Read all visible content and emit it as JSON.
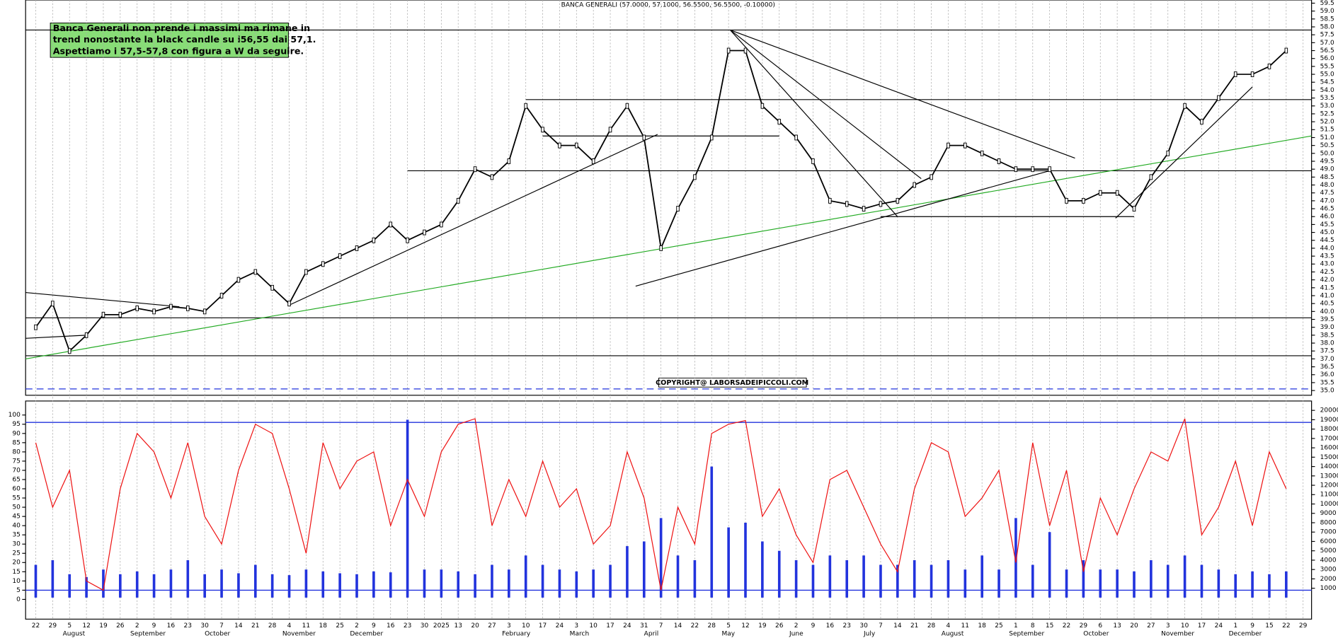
{
  "chart_data": {
    "type": "line",
    "title": "BANCA GENERALI (57.0000, 57.1000, 56.5500, 56.5500, -0.10000)",
    "annotation": [
      "Banca Generali non prende i massimi ma rimane in",
      "trend nonostante la black candle su i56,55 dai 57,1.",
      "Aspettiamo i 57,5-57,8 con figura a W da seguire."
    ],
    "copyright": "COPYRIGHT@ LABORSADEIPICCOLI.COM",
    "xlim": [
      -0.6,
      75.5
    ],
    "xticks": [
      {
        "value": 0,
        "label": "22"
      },
      {
        "value": 1,
        "label": "29"
      },
      {
        "value": 2,
        "label": "5"
      },
      {
        "value": 3,
        "label": "12"
      },
      {
        "value": 4,
        "label": "19"
      },
      {
        "value": 5,
        "label": "26"
      },
      {
        "value": 6,
        "label": "2"
      },
      {
        "value": 7,
        "label": "9"
      },
      {
        "value": 8,
        "label": "16"
      },
      {
        "value": 9,
        "label": "23"
      },
      {
        "value": 10,
        "label": "30"
      },
      {
        "value": 11,
        "label": "7"
      },
      {
        "value": 12,
        "label": "14"
      },
      {
        "value": 13,
        "label": "21"
      },
      {
        "value": 14,
        "label": "28"
      },
      {
        "value": 15,
        "label": "4"
      },
      {
        "value": 16,
        "label": "11"
      },
      {
        "value": 17,
        "label": "18"
      },
      {
        "value": 18,
        "label": "25"
      },
      {
        "value": 19,
        "label": "2"
      },
      {
        "value": 20,
        "label": "9"
      },
      {
        "value": 21,
        "label": "16"
      },
      {
        "value": 22,
        "label": "23"
      },
      {
        "value": 23,
        "label": "30"
      },
      {
        "value": 24,
        "label": "2025"
      },
      {
        "value": 25,
        "label": "13"
      },
      {
        "value": 26,
        "label": "20"
      },
      {
        "value": 27,
        "label": "27"
      },
      {
        "value": 28,
        "label": "3"
      },
      {
        "value": 29,
        "label": "10"
      },
      {
        "value": 30,
        "label": "17"
      },
      {
        "value": 31,
        "label": "24"
      },
      {
        "value": 32,
        "label": "3"
      },
      {
        "value": 33,
        "label": "10"
      },
      {
        "value": 34,
        "label": "17"
      },
      {
        "value": 35,
        "label": "24"
      },
      {
        "value": 36,
        "label": "31"
      },
      {
        "value": 37,
        "label": "7"
      },
      {
        "value": 38,
        "label": "14"
      },
      {
        "value": 39,
        "label": "22"
      },
      {
        "value": 40,
        "label": "28"
      },
      {
        "value": 41,
        "label": "5"
      },
      {
        "value": 42,
        "label": "12"
      },
      {
        "value": 43,
        "label": "19"
      },
      {
        "value": 44,
        "label": "26"
      },
      {
        "value": 45,
        "label": "2"
      },
      {
        "value": 46,
        "label": "9"
      },
      {
        "value": 47,
        "label": "16"
      },
      {
        "value": 48,
        "label": "23"
      },
      {
        "value": 49,
        "label": "30"
      },
      {
        "value": 50,
        "label": "7"
      },
      {
        "value": 51,
        "label": "14"
      },
      {
        "value": 52,
        "label": "21"
      },
      {
        "value": 53,
        "label": "28"
      },
      {
        "value": 54,
        "label": "4"
      },
      {
        "value": 55,
        "label": "11"
      },
      {
        "value": 56,
        "label": "18"
      },
      {
        "value": 57,
        "label": "25"
      },
      {
        "value": 58,
        "label": "1"
      },
      {
        "value": 59,
        "label": "8"
      },
      {
        "value": 60,
        "label": "15"
      },
      {
        "value": 61,
        "label": "22"
      },
      {
        "value": 62,
        "label": "29"
      },
      {
        "value": 63,
        "label": "6"
      },
      {
        "value": 64,
        "label": "13"
      },
      {
        "value": 65,
        "label": "20"
      },
      {
        "value": 66,
        "label": "27"
      },
      {
        "value": 67,
        "label": "3"
      },
      {
        "value": 68,
        "label": "10"
      },
      {
        "value": 69,
        "label": "17"
      },
      {
        "value": 70,
        "label": "24"
      },
      {
        "value": 71,
        "label": "1"
      },
      {
        "value": 72,
        "label": "9"
      },
      {
        "value": 73,
        "label": "15"
      },
      {
        "value": 74,
        "label": "22"
      },
      {
        "value": 75,
        "label": "29"
      }
    ],
    "months": [
      {
        "value": 2,
        "label": "August"
      },
      {
        "value": 6,
        "label": "September"
      },
      {
        "value": 10.4,
        "label": "October"
      },
      {
        "value": 15,
        "label": "November"
      },
      {
        "value": 19,
        "label": "December"
      },
      {
        "value": 28,
        "label": "February"
      },
      {
        "value": 32,
        "label": "March"
      },
      {
        "value": 36.4,
        "label": "April"
      },
      {
        "value": 41,
        "label": "May"
      },
      {
        "value": 45,
        "label": "June"
      },
      {
        "value": 49.4,
        "label": "July"
      },
      {
        "value": 54,
        "label": "August"
      },
      {
        "value": 58,
        "label": "September"
      },
      {
        "value": 62.4,
        "label": "October"
      },
      {
        "value": 67,
        "label": "November"
      },
      {
        "value": 71,
        "label": "December"
      }
    ],
    "x": [
      0,
      1,
      2,
      3,
      4,
      5,
      6,
      7,
      8,
      9,
      10,
      11,
      12,
      13,
      14,
      15,
      16,
      17,
      18,
      19,
      20,
      21,
      22,
      23,
      24,
      25,
      26,
      27,
      28,
      29,
      30,
      31,
      32,
      33,
      34,
      35,
      36,
      37,
      38,
      39,
      40,
      41,
      42,
      43,
      44,
      45,
      46,
      47,
      48,
      49,
      50,
      51,
      52,
      53,
      54,
      55,
      56,
      57,
      58,
      59,
      60,
      61,
      62,
      63,
      64,
      65,
      66,
      67,
      68,
      69,
      70,
      71,
      72,
      73,
      74
    ],
    "ylim": [
      34.7,
      59.7
    ],
    "yticks": [
      {
        "value": 35,
        "label": "35.0"
      },
      35.5,
      {
        "value": 36,
        "label": "36.0"
      },
      36.5,
      {
        "value": 37,
        "label": "37.0"
      },
      37.5,
      {
        "value": 38,
        "label": "38.0"
      },
      38.5,
      {
        "value": 39,
        "label": "39.0"
      },
      39.5,
      {
        "value": 40,
        "label": "40.0"
      },
      40.5,
      {
        "value": 41,
        "label": "41.0"
      },
      41.5,
      {
        "value": 42,
        "label": "42.0"
      },
      42.5,
      {
        "value": 43,
        "label": "43.0"
      },
      43.5,
      {
        "value": 44,
        "label": "44.0"
      },
      44.5,
      {
        "value": 45,
        "label": "45.0"
      },
      45.5,
      {
        "value": 46,
        "label": "46.0"
      },
      46.5,
      {
        "value": 47,
        "label": "47.0"
      },
      47.5,
      {
        "value": 48,
        "label": "48.0"
      },
      48.5,
      {
        "value": 49,
        "label": "49.0"
      },
      49.5,
      {
        "value": 50,
        "label": "50.0"
      },
      50.5,
      {
        "value": 51,
        "label": "51.0"
      },
      51.5,
      {
        "value": 52,
        "label": "52.0"
      },
      52.5,
      {
        "value": 53,
        "label": "53.0"
      },
      53.5,
      {
        "value": 54,
        "label": "54.0"
      },
      54.5,
      {
        "value": 55,
        "label": "55.0"
      },
      55.5,
      {
        "value": 56,
        "label": "56.0"
      },
      56.5,
      {
        "value": 57,
        "label": "57.0"
      },
      57.5,
      {
        "value": 58,
        "label": "58.0"
      },
      58.5,
      {
        "value": 59,
        "label": "59.0"
      },
      59.5
    ],
    "series": [
      {
        "color": "#000000",
        "values": [
          39.0,
          40.5,
          37.5,
          38.5,
          39.8,
          39.8,
          40.2,
          40.0,
          40.3,
          40.2,
          40.0,
          41.0,
          42.0,
          42.5,
          41.5,
          40.5,
          42.5,
          43.0,
          43.5,
          44.0,
          44.5,
          45.5,
          44.5,
          45.0,
          45.5,
          47.0,
          49.0,
          48.5,
          49.5,
          53.0,
          51.5,
          50.5,
          50.5,
          49.5,
          51.5,
          53.0,
          51.0,
          44.0,
          46.5,
          48.5,
          51.0,
          56.5,
          56.5,
          53.0,
          52.0,
          51.0,
          49.5,
          47.0,
          46.8,
          46.5,
          46.8,
          47.0,
          48.0,
          48.5,
          50.5,
          50.5,
          50.0,
          49.5,
          49.0,
          49.0,
          49.0,
          47.0,
          47.0,
          47.5,
          47.5,
          46.5,
          48.5,
          50.0,
          53.0,
          52.0,
          53.5,
          55.0,
          55.0,
          55.5,
          56.5
        ]
      }
    ],
    "levels": [
      {
        "value": 57.8,
        "from": -0.6,
        "to": 75.5,
        "color": "#000000"
      },
      {
        "value": 53.4,
        "from": 29,
        "to": 75.5,
        "color": "#000000"
      },
      {
        "value": 51.1,
        "from": 30,
        "to": 44,
        "color": "#000000"
      },
      {
        "value": 48.9,
        "from": 22,
        "to": 75.5,
        "color": "#000000"
      },
      {
        "value": 46.0,
        "from": 50,
        "to": 65,
        "color": "#000000"
      },
      {
        "value": 39.6,
        "from": -0.6,
        "to": 75.5,
        "color": "#000000"
      },
      {
        "value": 37.2,
        "from": -0.6,
        "to": 75.5,
        "color": "#000000"
      },
      {
        "value": 35.1,
        "from": -0.6,
        "to": 75.5,
        "color": "#2233dd",
        "dashed": true
      }
    ],
    "trendlines": [
      {
        "points": [
          [
            -0.6,
            37.0
          ],
          [
            75.5,
            51.1
          ]
        ],
        "color": "#22aa22"
      },
      {
        "points": [
          [
            15,
            40.4
          ],
          [
            36.8,
            51.2
          ]
        ],
        "color": "#000000"
      },
      {
        "points": [
          [
            35.5,
            41.6
          ],
          [
            60,
            48.9
          ]
        ],
        "color": "#000000"
      },
      {
        "points": [
          [
            41.1,
            57.8
          ],
          [
            61.5,
            49.7
          ]
        ],
        "color": "#000000"
      },
      {
        "points": [
          [
            41.1,
            57.8
          ],
          [
            51,
            46.0
          ]
        ],
        "color": "#000000"
      },
      {
        "points": [
          [
            41.1,
            57.8
          ],
          [
            52.4,
            48.4
          ]
        ],
        "color": "#000000"
      },
      {
        "points": [
          [
            63.9,
            45.9
          ],
          [
            72,
            54.2
          ]
        ],
        "color": "#000000"
      },
      {
        "points": [
          [
            -0.6,
            41.2
          ],
          [
            8.5,
            40.3
          ]
        ],
        "color": "#000000"
      },
      {
        "points": [
          [
            -0.6,
            38.3
          ],
          [
            3,
            38.5
          ]
        ],
        "color": "#000000"
      }
    ],
    "oscillator": {
      "color": "#ee1111",
      "ylim": [
        -10.7,
        107.6
      ],
      "yticks": [
        0,
        5,
        10,
        15,
        20,
        25,
        30,
        35,
        40,
        45,
        50,
        55,
        60,
        65,
        70,
        75,
        80,
        85,
        90,
        95,
        100
      ],
      "levels": [
        96,
        5
      ],
      "level_color": "#2233dd",
      "values": [
        85,
        50,
        70,
        10,
        5,
        60,
        90,
        80,
        55,
        85,
        45,
        30,
        70,
        95,
        90,
        60,
        25,
        85,
        60,
        75,
        80,
        40,
        65,
        45,
        80,
        95,
        98,
        40,
        65,
        45,
        75,
        50,
        60,
        30,
        40,
        80,
        55,
        5,
        50,
        30,
        90,
        95,
        97,
        45,
        60,
        35,
        20,
        65,
        70,
        50,
        30,
        15,
        60,
        85,
        80,
        45,
        55,
        70,
        20,
        85,
        40,
        70,
        15,
        55,
        35,
        60,
        80,
        75,
        98,
        35,
        50,
        75,
        40,
        80,
        60
      ]
    },
    "volume": {
      "color": "#2233dd",
      "y2lim": [
        -2300,
        21000
      ],
      "y2ticks": [
        1000,
        2000,
        3000,
        4000,
        5000,
        6000,
        7000,
        8000,
        9000,
        10000,
        11000,
        12000,
        13000,
        14000,
        15000,
        16000,
        17000,
        18000,
        19000,
        20000
      ],
      "values": [
        3500,
        4000,
        2500,
        2200,
        3000,
        2500,
        2800,
        2500,
        3000,
        4000,
        2500,
        3000,
        2600,
        3500,
        2500,
        2400,
        3000,
        2800,
        2600,
        2500,
        2800,
        2700,
        19000,
        3000,
        3000,
        2800,
        2500,
        3500,
        3000,
        4500,
        3500,
        3000,
        2800,
        3000,
        3500,
        5500,
        6000,
        8500,
        4500,
        4000,
        14000,
        7500,
        8000,
        6000,
        5000,
        4000,
        3500,
        4500,
        4000,
        4500,
        3500,
        3500,
        4000,
        3500,
        4000,
        3000,
        4500,
        3000,
        8500,
        3500,
        7000,
        3000,
        4000,
        3000,
        3000,
        2800,
        4000,
        3500,
        4500,
        3500,
        3000,
        2500,
        2800,
        2500,
        2800
      ]
    }
  }
}
